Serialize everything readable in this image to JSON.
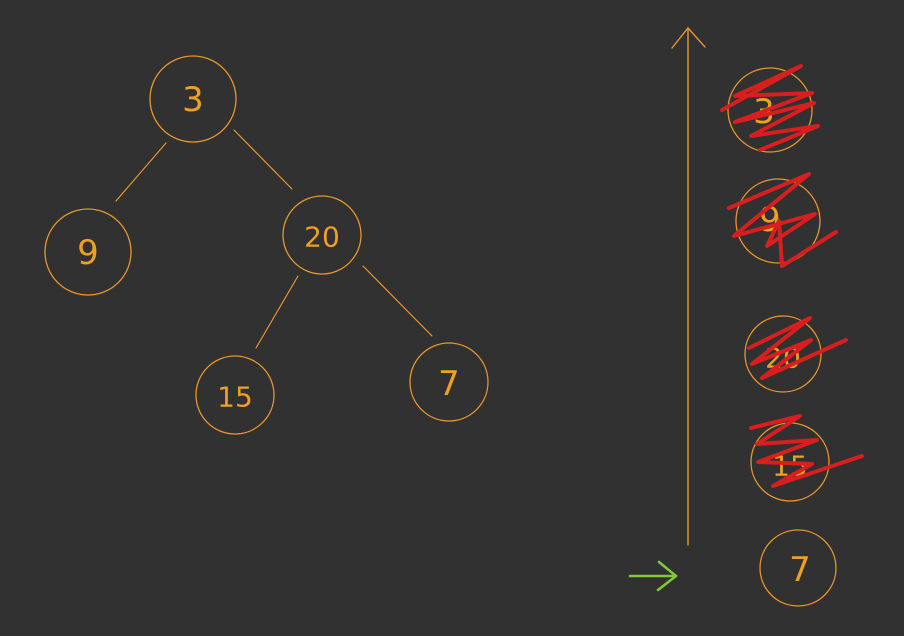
{
  "colors": {
    "background": "#313131",
    "node_stroke": "#e8962a",
    "node_text": "#f0a020",
    "cross_out": "#d81e1e",
    "pointer": "#7ec83a"
  },
  "tree": {
    "root": "3",
    "root_left": "9",
    "root_right": "20",
    "right_left": "15",
    "right_right": "7"
  },
  "stack": {
    "items": [
      {
        "value": "3",
        "crossed_out": true
      },
      {
        "value": "9",
        "crossed_out": true
      },
      {
        "value": "20",
        "crossed_out": true
      },
      {
        "value": "15",
        "crossed_out": true
      },
      {
        "value": "7",
        "crossed_out": false
      }
    ],
    "direction_icon": "arrow-up-icon",
    "current_pointer_icon": "arrow-right-icon"
  }
}
